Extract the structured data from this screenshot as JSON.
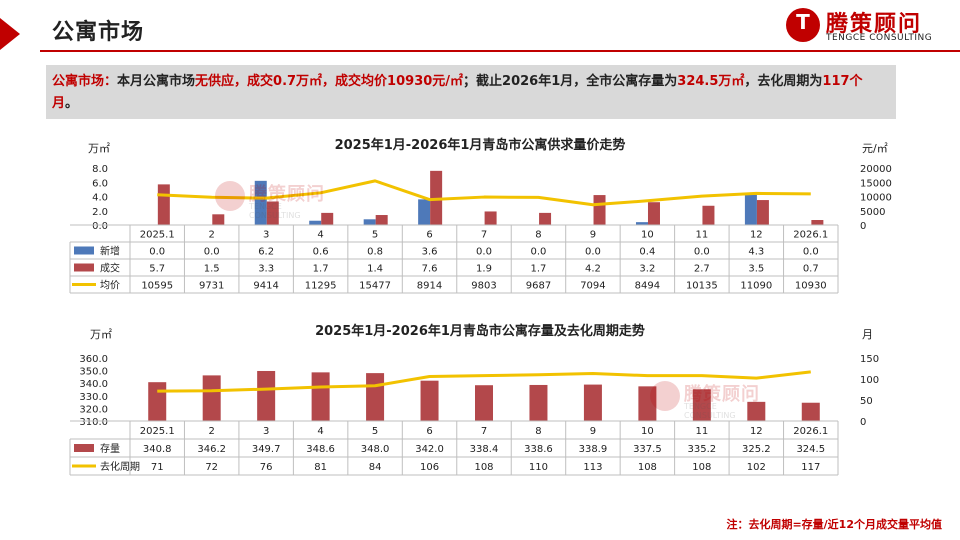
{
  "header": {
    "title": "公寓市场"
  },
  "logo": {
    "name": "腾策顾问",
    "sub": "TENGCE CONSULTING",
    "letter": "T"
  },
  "summary": {
    "s1": "公寓市场：",
    "s2": "本月公寓市场",
    "s3": "无供应，成交0.7万㎡，成交均价10930元/㎡",
    "s4": "；截止2026年1月，全市公寓存量为",
    "s5": "324.5万㎡",
    "s6": "，去化周期为",
    "s7": "117个月",
    "s8": "。"
  },
  "note": "注：去化周期=存量/近12个月成交量平均值",
  "colors": {
    "blue": "#4e79b9",
    "red": "#b3484b",
    "yellow": "#f2c200",
    "brand": "#c00000"
  },
  "chart_data": [
    {
      "type": "bar",
      "title": "2025年1月-2026年1月青岛市公寓供求量价走势",
      "categories": [
        "2025.1",
        "2",
        "3",
        "4",
        "5",
        "6",
        "7",
        "8",
        "9",
        "10",
        "11",
        "12",
        "2026.1"
      ],
      "y_left_unit": "万㎡",
      "y_right_unit": "元/㎡",
      "y_left_ticks": [
        "8.0",
        "6.0",
        "4.0",
        "2.0",
        "0.0"
      ],
      "y_right_ticks": [
        "20000",
        "15000",
        "10000",
        "5000",
        "0"
      ],
      "ylim_left": [
        0,
        8
      ],
      "ylim_right": [
        0,
        20000
      ],
      "series": [
        {
          "name": "新增",
          "kind": "bar",
          "axis": "left",
          "color": "#4e79b9",
          "values": [
            0.0,
            0.0,
            6.2,
            0.6,
            0.8,
            3.6,
            0.0,
            0.0,
            0.0,
            0.4,
            0.0,
            4.3,
            0.0
          ],
          "labels": [
            "0.0",
            "0.0",
            "6.2",
            "0.6",
            "0.8",
            "3.6",
            "0.0",
            "0.0",
            "0.0",
            "0.4",
            "0.0",
            "4.3",
            "0.0"
          ]
        },
        {
          "name": "成交",
          "kind": "bar",
          "axis": "left",
          "color": "#b3484b",
          "values": [
            5.7,
            1.5,
            3.3,
            1.7,
            1.4,
            7.6,
            1.9,
            1.7,
            4.2,
            3.2,
            2.7,
            3.5,
            0.7
          ],
          "labels": [
            "5.7",
            "1.5",
            "3.3",
            "1.7",
            "1.4",
            "7.6",
            "1.9",
            "1.7",
            "4.2",
            "3.2",
            "2.7",
            "3.5",
            "0.7"
          ]
        },
        {
          "name": "均价",
          "kind": "line",
          "axis": "right",
          "color": "#f2c200",
          "values": [
            10595,
            9731,
            9414,
            11295,
            15477,
            8914,
            9803,
            9687,
            7094,
            8494,
            10135,
            11090,
            10930
          ],
          "labels": [
            "10595",
            "9731",
            "9414",
            "11295",
            "15477",
            "8914",
            "9803",
            "9687",
            "7094",
            "8494",
            "10135",
            "11090",
            "10930"
          ]
        }
      ]
    },
    {
      "type": "bar",
      "title": "2025年1月-2026年1月青岛市公寓存量及去化周期走势",
      "categories": [
        "2025.1",
        "2",
        "3",
        "4",
        "5",
        "6",
        "7",
        "8",
        "9",
        "10",
        "11",
        "12",
        "2026.1"
      ],
      "y_left_unit": "万㎡",
      "y_right_unit": "月",
      "y_left_ticks": [
        "360.0",
        "350.0",
        "340.0",
        "330.0",
        "320.0",
        "310.0"
      ],
      "y_right_ticks": [
        "150",
        "100",
        "50",
        "0"
      ],
      "ylim_left": [
        310,
        360
      ],
      "ylim_right": [
        0,
        150
      ],
      "series": [
        {
          "name": "存量",
          "kind": "bar",
          "axis": "left",
          "color": "#b3484b",
          "values": [
            340.8,
            346.2,
            349.7,
            348.6,
            348.0,
            342.0,
            338.4,
            338.6,
            338.9,
            337.5,
            335.2,
            325.2,
            324.5
          ],
          "labels": [
            "340.8",
            "346.2",
            "349.7",
            "348.6",
            "348.0",
            "342.0",
            "338.4",
            "338.6",
            "338.9",
            "337.5",
            "335.2",
            "325.2",
            "324.5"
          ]
        },
        {
          "name": "去化周期",
          "kind": "line",
          "axis": "right",
          "color": "#f2c200",
          "values": [
            71,
            72,
            76,
            81,
            84,
            106,
            108,
            110,
            113,
            108,
            108,
            102,
            117
          ],
          "labels": [
            "71",
            "72",
            "76",
            "81",
            "84",
            "106",
            "108",
            "110",
            "113",
            "108",
            "108",
            "102",
            "117"
          ]
        }
      ]
    }
  ]
}
